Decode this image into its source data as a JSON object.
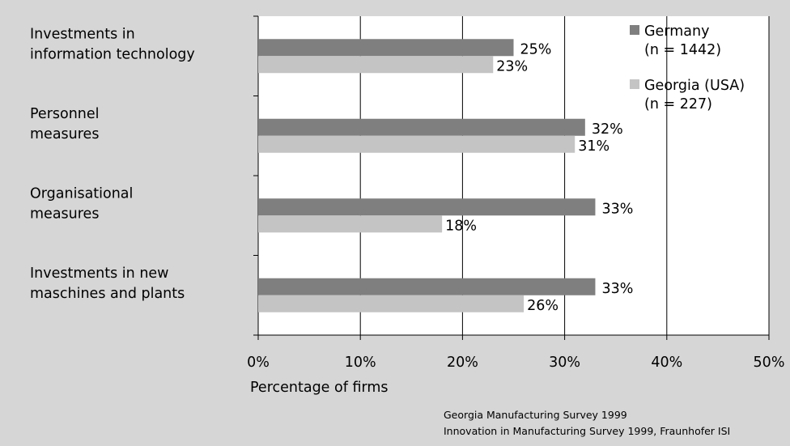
{
  "chart_data": {
    "type": "bar",
    "orientation": "horizontal",
    "categories": [
      [
        "Investments in",
        "information technology"
      ],
      [
        "Personnel",
        "measures"
      ],
      [
        "Organisational",
        "measures"
      ],
      [
        "Investments in new",
        "maschines and plants"
      ]
    ],
    "series": [
      {
        "name": [
          "Germany",
          "(n = 1442)"
        ],
        "values": [
          25,
          32,
          33,
          33
        ],
        "labels": [
          "25%",
          "32%",
          "33%",
          "33%"
        ],
        "color": "#7f7f7f"
      },
      {
        "name": [
          "Georgia (USA)",
          "(n = 227)"
        ],
        "values": [
          23,
          31,
          18,
          26
        ],
        "labels": [
          "23%",
          "31%",
          "18%",
          "26%"
        ],
        "color": "#c4c4c4"
      }
    ],
    "xlim": [
      0,
      50
    ],
    "xticks": [
      "0%",
      "10%",
      "20%",
      "30%",
      "40%",
      "50%"
    ],
    "xlabel": "Percentage of firms",
    "title": "",
    "ylabel": "",
    "grid": "vertical",
    "legend_position": "top-right",
    "plot_background": "#ffffff",
    "page_background": "#d6d6d6"
  },
  "source": [
    "Georgia Manufacturing Survey 1999",
    "Innovation in Manufacturing Survey 1999, Fraunhofer ISI"
  ]
}
